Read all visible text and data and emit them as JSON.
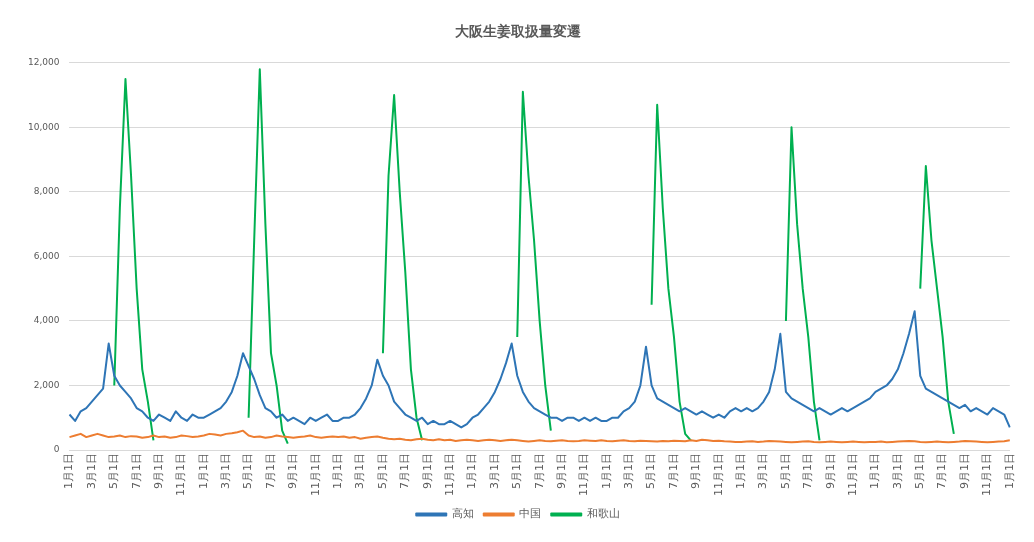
{
  "chart_data": {
    "type": "line",
    "title": "大阪生姜取扱量変遷",
    "categories": [
      "1月1日",
      null,
      null,
      null,
      "3月1日",
      null,
      null,
      null,
      "5月1日",
      null,
      null,
      null,
      "7月1日",
      null,
      null,
      null,
      "9月1日",
      null,
      null,
      null,
      "11月1日",
      null,
      null,
      null,
      "1月1日",
      null,
      null,
      null,
      "3月1日",
      null,
      null,
      null,
      "5月1日",
      null,
      null,
      null,
      "7月1日",
      null,
      null,
      null,
      "9月1日",
      null,
      null,
      null,
      "11月1日",
      null,
      null,
      null,
      "1月1日",
      null,
      null,
      null,
      "3月1日",
      null,
      null,
      null,
      "5月1日",
      null,
      null,
      null,
      "7月1日",
      null,
      null,
      null,
      "9月1日",
      null,
      null,
      null,
      "11月1日",
      null,
      null,
      null,
      "1月1日",
      null,
      null,
      null,
      "3月1日",
      null,
      null,
      null,
      "5月1日",
      null,
      null,
      null,
      "7月1日",
      null,
      null,
      null,
      "9月1日",
      null,
      null,
      null,
      "11月1日",
      null,
      null,
      null,
      "1月1日",
      null,
      null,
      null,
      "3月1日",
      null,
      null,
      null,
      "5月1日",
      null,
      null,
      null,
      "7月1日",
      null,
      null,
      null,
      "9月1日",
      null,
      null,
      null,
      "11月1日",
      null,
      null,
      null,
      "1月1日",
      null,
      null,
      null,
      "3月1日",
      null,
      null,
      null,
      "5月1日",
      null,
      null,
      null,
      "7月1日",
      null,
      null,
      null,
      "9月1日",
      null,
      null,
      null,
      "11月1日",
      null,
      null,
      null,
      "1月1日",
      null,
      null,
      null,
      "3月1日",
      null,
      null,
      null,
      "5月1日",
      null,
      null,
      null,
      "7月1日",
      null,
      null,
      null,
      "9月1日",
      null,
      null,
      null,
      "11月1日",
      null,
      null,
      null,
      "1月1日"
    ],
    "series": [
      {
        "name": "高知",
        "color": "#2e75b6",
        "values": [
          1100,
          900,
          1200,
          1300,
          1500,
          1700,
          1900,
          3300,
          2300,
          2000,
          1800,
          1600,
          1300,
          1200,
          1000,
          900,
          1100,
          1000,
          900,
          1200,
          1000,
          900,
          1100,
          1000,
          1000,
          1100,
          1200,
          1300,
          1500,
          1800,
          2300,
          3000,
          2600,
          2200,
          1700,
          1300,
          1200,
          1000,
          1100,
          900,
          1000,
          900,
          800,
          1000,
          900,
          1000,
          1100,
          900,
          900,
          1000,
          1000,
          1100,
          1300,
          1600,
          2000,
          2800,
          2300,
          2000,
          1500,
          1300,
          1100,
          1000,
          900,
          1000,
          800,
          900,
          800,
          800,
          900,
          800,
          700,
          800,
          1000,
          1100,
          1300,
          1500,
          1800,
          2200,
          2700,
          3300,
          2300,
          1800,
          1500,
          1300,
          1200,
          1100,
          1000,
          1000,
          900,
          1000,
          1000,
          900,
          1000,
          900,
          1000,
          900,
          900,
          1000,
          1000,
          1200,
          1300,
          1500,
          2000,
          3200,
          2000,
          1600,
          1500,
          1400,
          1300,
          1200,
          1300,
          1200,
          1100,
          1200,
          1100,
          1000,
          1100,
          1000,
          1200,
          1300,
          1200,
          1300,
          1200,
          1300,
          1500,
          1800,
          2500,
          3600,
          1800,
          1600,
          1500,
          1400,
          1300,
          1200,
          1300,
          1200,
          1100,
          1200,
          1300,
          1200,
          1300,
          1400,
          1500,
          1600,
          1800,
          1900,
          2000,
          2200,
          2500,
          3000,
          3600,
          4300,
          2300,
          1900,
          1800,
          1700,
          1600,
          1500,
          1400,
          1300,
          1400,
          1200,
          1300,
          1200,
          1100,
          1300,
          1200,
          1100,
          700
        ]
      },
      {
        "name": "中国",
        "color": "#ed7d31",
        "values": [
          400,
          450,
          500,
          400,
          450,
          500,
          450,
          400,
          420,
          450,
          400,
          430,
          420,
          380,
          400,
          450,
          400,
          420,
          380,
          400,
          450,
          430,
          400,
          420,
          450,
          500,
          480,
          450,
          500,
          520,
          550,
          600,
          450,
          400,
          420,
          380,
          400,
          450,
          420,
          400,
          380,
          400,
          420,
          450,
          400,
          380,
          400,
          420,
          400,
          420,
          380,
          400,
          350,
          380,
          400,
          420,
          380,
          350,
          330,
          350,
          320,
          300,
          330,
          350,
          320,
          300,
          330,
          300,
          320,
          280,
          300,
          320,
          300,
          280,
          300,
          320,
          300,
          280,
          300,
          320,
          300,
          280,
          260,
          280,
          300,
          280,
          270,
          290,
          300,
          280,
          270,
          280,
          300,
          290,
          280,
          300,
          280,
          270,
          290,
          300,
          280,
          270,
          290,
          280,
          270,
          260,
          280,
          270,
          290,
          280,
          270,
          300,
          280,
          320,
          300,
          280,
          290,
          270,
          260,
          250,
          250,
          260,
          270,
          250,
          260,
          280,
          270,
          260,
          250,
          240,
          250,
          260,
          270,
          250,
          240,
          250,
          260,
          250,
          240,
          250,
          260,
          250,
          240,
          250,
          250,
          260,
          240,
          250,
          260,
          270,
          280,
          270,
          250,
          240,
          250,
          260,
          250,
          240,
          250,
          260,
          280,
          270,
          260,
          250,
          240,
          250,
          260,
          270,
          300
        ]
      },
      {
        "name": "和歌山",
        "color": "#00b050",
        "values": [
          null,
          null,
          null,
          null,
          null,
          null,
          null,
          null,
          2000,
          7500,
          11500,
          8500,
          5000,
          2500,
          1500,
          300,
          null,
          null,
          null,
          null,
          null,
          null,
          null,
          null,
          null,
          null,
          null,
          null,
          null,
          null,
          null,
          null,
          1000,
          6500,
          11800,
          7000,
          3000,
          2000,
          600,
          200,
          null,
          null,
          null,
          null,
          null,
          null,
          null,
          null,
          null,
          null,
          null,
          null,
          null,
          null,
          null,
          null,
          3000,
          8500,
          11000,
          8000,
          5500,
          2500,
          1000,
          300,
          null,
          null,
          null,
          null,
          null,
          null,
          null,
          null,
          null,
          null,
          null,
          null,
          null,
          null,
          null,
          null,
          3500,
          11100,
          8500,
          6500,
          4000,
          2000,
          600,
          null,
          null,
          null,
          null,
          null,
          null,
          null,
          null,
          null,
          null,
          null,
          null,
          null,
          null,
          null,
          null,
          null,
          4500,
          10700,
          7500,
          5000,
          3500,
          1500,
          500,
          300,
          null,
          null,
          null,
          null,
          null,
          null,
          null,
          null,
          null,
          null,
          null,
          null,
          null,
          null,
          null,
          null,
          4000,
          10000,
          7000,
          5000,
          3500,
          1500,
          300,
          null,
          null,
          null,
          null,
          null,
          null,
          null,
          null,
          null,
          null,
          null,
          null,
          null,
          null,
          null,
          null,
          null,
          5000,
          8800,
          6500,
          5000,
          3500,
          1500,
          500,
          null,
          null,
          null,
          null,
          null,
          null,
          null,
          null,
          null,
          null
        ]
      }
    ],
    "ylim": [
      0,
      12000
    ],
    "yticks": [
      0,
      {
        "value": 2000,
        "label": "2,000"
      },
      {
        "value": 4000,
        "label": "4,000"
      },
      {
        "value": 6000,
        "label": "6,000"
      },
      {
        "value": 8000,
        "label": "8,000"
      },
      {
        "value": 10000,
        "label": "10,000"
      },
      {
        "value": 12000,
        "label": "12,000"
      }
    ],
    "grid": "y",
    "legend": "bottom",
    "marker": "none",
    "line_style": "solid"
  }
}
